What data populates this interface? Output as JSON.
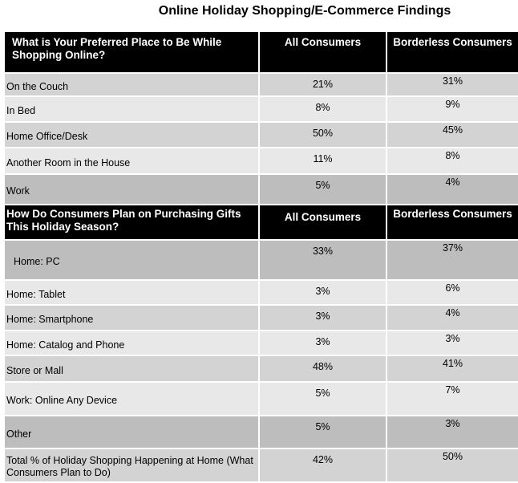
{
  "title": "Online Holiday Shopping/E-Commerce Findings",
  "section1": {
    "question": "What is Your Preferred Place to Be While Shopping Online?",
    "col_all": "All Consumers",
    "col_borderless": "Borderless Consumers",
    "rows": [
      {
        "label": "On the Couch",
        "all": "21%",
        "borderless": "31%"
      },
      {
        "label": "In Bed",
        "all": "8%",
        "borderless": "9%"
      },
      {
        "label": "Home Office/Desk",
        "all": "50%",
        "borderless": "45%"
      },
      {
        "label": "Another Room in the House",
        "all": "11%",
        "borderless": "8%"
      },
      {
        "label": "Work",
        "all": "5%",
        "borderless": "4%"
      }
    ]
  },
  "section2": {
    "question": "How Do Consumers Plan on Purchasing  Gifts This Holiday Season?",
    "col_all": "All Consumers",
    "col_borderless": "Borderless Consumers",
    "rows": [
      {
        "label": "Home: PC",
        "all": "33%",
        "borderless": "37%"
      },
      {
        "label": "Home: Tablet",
        "all": "3%",
        "borderless": "6%"
      },
      {
        "label": "Home: Smartphone",
        "all": "3%",
        "borderless": "4%"
      },
      {
        "label": "Home: Catalog and Phone",
        "all": "3%",
        "borderless": "3%"
      },
      {
        "label": "Store or Mall",
        "all": "48%",
        "borderless": "41%"
      },
      {
        "label": "Work: Online Any Device",
        "all": "5%",
        "borderless": "7%"
      },
      {
        "label": "Other",
        "all": "5%",
        "borderless": "3%"
      },
      {
        "label": "Total % of Holiday Shopping Happening  at Home (What Consumers Plan to Do)",
        "all": "42%",
        "borderless": "50%"
      }
    ]
  }
}
